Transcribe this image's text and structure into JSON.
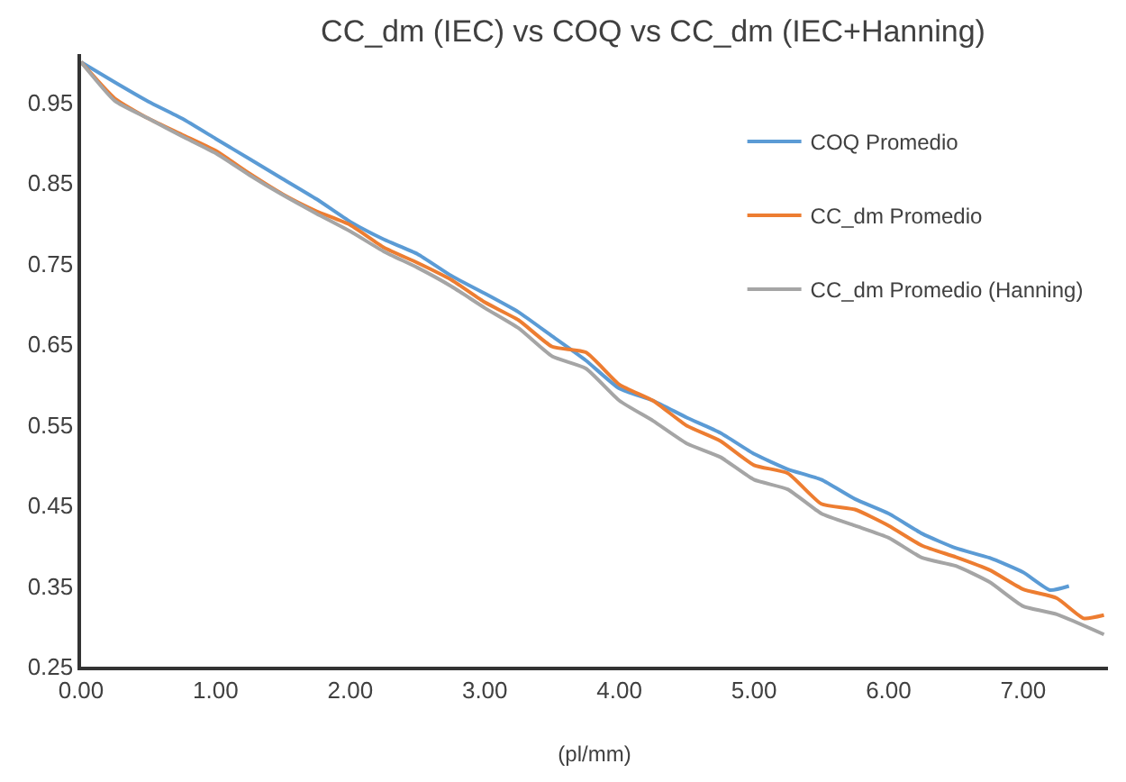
{
  "chart_data": {
    "type": "line",
    "title": "CC_dm (IEC) vs COQ vs CC_dm (IEC+Hanning)",
    "xlabel": "(pl/mm)",
    "xlim": [
      0,
      7.63
    ],
    "ylim": [
      0.25,
      1.01
    ],
    "xticks": [
      {
        "value": 0,
        "label": "0.00"
      },
      {
        "value": 1,
        "label": "1.00"
      },
      {
        "value": 2,
        "label": "2.00"
      },
      {
        "value": 3,
        "label": "3.00"
      },
      {
        "value": 4,
        "label": "4.00"
      },
      {
        "value": 5,
        "label": "5.00"
      },
      {
        "value": 6,
        "label": "6.00"
      },
      {
        "value": 7,
        "label": "7.00"
      }
    ],
    "yticks": [
      0.25,
      0.35,
      0.45,
      0.55,
      0.65,
      0.75,
      0.85,
      0.95
    ],
    "legend": "top right",
    "marker": "none",
    "line_style": "solid",
    "series": [
      {
        "name": "COQ Promedio",
        "color": "#5b9bd5",
        "x": [
          0,
          0.25,
          0.5,
          0.75,
          1.0,
          1.25,
          1.5,
          1.75,
          2.0,
          2.25,
          2.5,
          2.75,
          3.0,
          3.25,
          3.5,
          3.75,
          4.0,
          4.25,
          4.5,
          4.75,
          5.0,
          5.25,
          5.5,
          5.75,
          6.0,
          6.25,
          6.5,
          6.75,
          7.0,
          7.2,
          7.34
        ],
        "values": [
          1.0,
          0.975,
          0.951,
          0.93,
          0.905,
          0.88,
          0.855,
          0.83,
          0.802,
          0.78,
          0.762,
          0.735,
          0.713,
          0.69,
          0.66,
          0.63,
          0.595,
          0.58,
          0.559,
          0.54,
          0.514,
          0.495,
          0.482,
          0.458,
          0.44,
          0.415,
          0.397,
          0.385,
          0.367,
          0.345,
          0.35
        ]
      },
      {
        "name": "CC_dm Promedio",
        "color": "#ed7d31",
        "x": [
          0,
          0.25,
          0.5,
          0.75,
          1.0,
          1.25,
          1.5,
          1.75,
          2.0,
          2.25,
          2.5,
          2.75,
          3.0,
          3.25,
          3.5,
          3.75,
          4.0,
          4.25,
          4.5,
          4.75,
          5.0,
          5.25,
          5.5,
          5.75,
          6.0,
          6.25,
          6.5,
          6.75,
          7.0,
          7.25,
          7.45,
          7.6
        ],
        "values": [
          1.0,
          0.955,
          0.93,
          0.91,
          0.89,
          0.862,
          0.836,
          0.815,
          0.798,
          0.77,
          0.751,
          0.73,
          0.702,
          0.68,
          0.647,
          0.64,
          0.6,
          0.58,
          0.549,
          0.53,
          0.5,
          0.49,
          0.452,
          0.445,
          0.425,
          0.4,
          0.386,
          0.37,
          0.346,
          0.335,
          0.31,
          0.314
        ]
      },
      {
        "name": "CC_dm Promedio (Hanning)",
        "color": "#a5a5a5",
        "x": [
          0,
          0.25,
          0.5,
          0.75,
          1.0,
          1.25,
          1.5,
          1.75,
          2.0,
          2.25,
          2.5,
          2.75,
          3.0,
          3.25,
          3.5,
          3.75,
          4.0,
          4.25,
          4.5,
          4.75,
          5.0,
          5.25,
          5.5,
          5.75,
          6.0,
          6.25,
          6.5,
          6.75,
          7.0,
          7.25,
          7.6
        ],
        "values": [
          1.0,
          0.952,
          0.93,
          0.908,
          0.887,
          0.86,
          0.835,
          0.812,
          0.79,
          0.765,
          0.745,
          0.722,
          0.695,
          0.67,
          0.635,
          0.62,
          0.58,
          0.555,
          0.527,
          0.51,
          0.482,
          0.47,
          0.44,
          0.425,
          0.41,
          0.385,
          0.375,
          0.355,
          0.325,
          0.315,
          0.29
        ]
      }
    ]
  }
}
